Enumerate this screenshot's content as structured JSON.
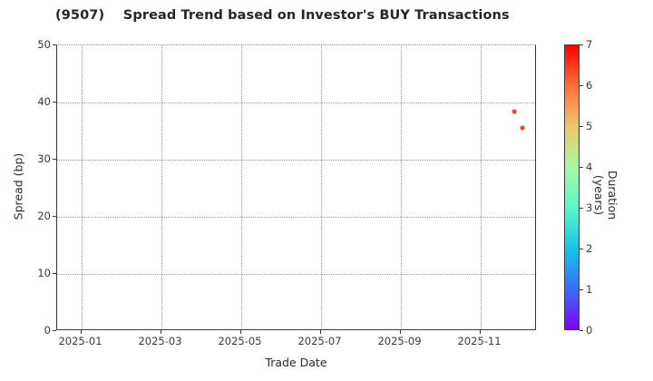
{
  "chart_data": {
    "type": "scatter",
    "title": "(9507)    Spread Trend based on Investor's BUY Transactions",
    "xlabel": "Trade Date",
    "ylabel": "Spread (bp)",
    "colorbar_label": "Duration (years)",
    "x_tick_labels": [
      "2025-01",
      "2025-03",
      "2025-05",
      "2025-07",
      "2025-09",
      "2025-11"
    ],
    "y_ticks": [
      0,
      10,
      20,
      30,
      40,
      50
    ],
    "ylim": [
      0,
      50
    ],
    "x_range_note": "approx 2024-12-13 to 2025-12-13",
    "grid": true,
    "legend_position": "none",
    "colorbar_position": "right",
    "colorbar_ticks": [
      0,
      1,
      2,
      3,
      4,
      5,
      6,
      7
    ],
    "colorbar_range": [
      0,
      7
    ],
    "colormap_stops_top_to_bottom": [
      "#ff0000",
      "#ff6f39",
      "#edc76f",
      "#a4f99f",
      "#5bf9c8",
      "#12c7e6",
      "#376ff9",
      "#8000ff"
    ],
    "points": [
      {
        "date": "2025-11-27",
        "spread_bp": 38.4,
        "duration_years": 6.6,
        "color": "#f4402b"
      },
      {
        "date": "2025-12-03",
        "spread_bp": 35.6,
        "duration_years": 6.6,
        "color": "#f4402b"
      }
    ]
  },
  "colors": {
    "background": "#ffffff",
    "spine": "#3a3a3a",
    "gridline": "#9a9a9a",
    "title_text": "#262626",
    "tick_text": "#3a3a3a"
  }
}
